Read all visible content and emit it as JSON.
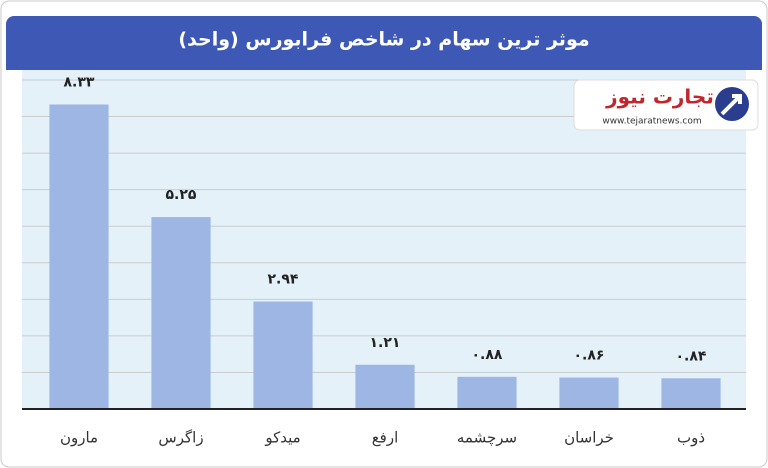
{
  "chart_data": {
    "type": "bar",
    "title": "موثر ترین سهام در شاخص فرابورس (واحد)",
    "categories": [
      "مارون",
      "زاگرس",
      "میدکو",
      "ارفع",
      "سرچشمه",
      "خراسان",
      "ذوب"
    ],
    "values": [
      8.33,
      5.25,
      2.94,
      1.21,
      0.88,
      0.86,
      0.84
    ],
    "value_labels": [
      "۸.۳۳",
      "۵.۲۵",
      "۲.۹۴",
      "۱.۲۱",
      "۰.۸۸",
      "۰.۸۶",
      "۰.۸۴"
    ],
    "color": "#9db6e4",
    "ylim": [
      0,
      9
    ],
    "yticks": [
      0,
      1,
      2,
      3,
      4,
      5,
      6,
      7,
      8,
      9
    ],
    "grid": true
  },
  "logo": {
    "name": "تجارت نیوز",
    "url": "www.tejaratnews.com"
  }
}
